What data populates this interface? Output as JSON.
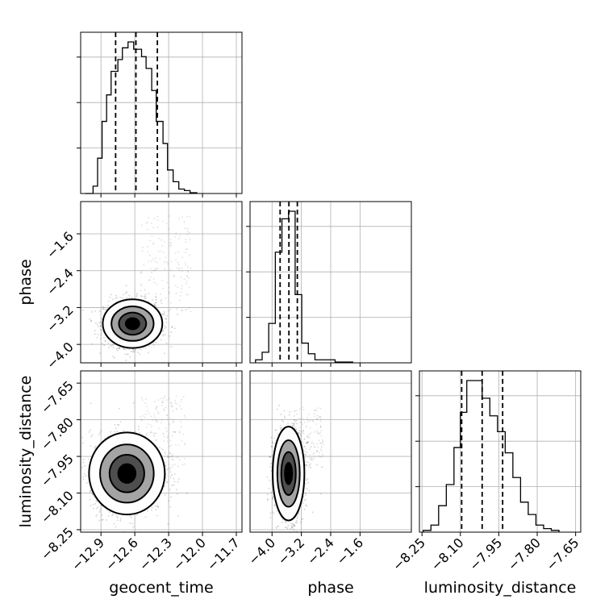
{
  "chart_data": {
    "type": "corner",
    "parameters": [
      "geocent_time",
      "phase",
      "luminosity_distance"
    ],
    "grid": true,
    "colors": {
      "line": "#000000",
      "grid": "#b0b0b0",
      "points": "#000000"
    },
    "panels": {
      "geocent_time": {
        "type": "histogram",
        "xlim": [
          -13.08,
          -11.65
        ],
        "quantiles": [
          -12.77,
          -12.59,
          -12.4
        ],
        "bins": [
          {
            "x0": -13.04,
            "x1": -12.97,
            "v": 0.0
          },
          {
            "x0": -12.97,
            "x1": -12.93,
            "v": 0.05
          },
          {
            "x0": -12.93,
            "x1": -12.89,
            "v": 0.24
          },
          {
            "x0": -12.89,
            "x1": -12.85,
            "v": 0.49
          },
          {
            "x0": -12.85,
            "x1": -12.81,
            "v": 0.67
          },
          {
            "x0": -12.81,
            "x1": -12.75,
            "v": 0.83
          },
          {
            "x0": -12.75,
            "x1": -12.71,
            "v": 0.91
          },
          {
            "x0": -12.71,
            "x1": -12.66,
            "v": 0.99
          },
          {
            "x0": -12.66,
            "x1": -12.61,
            "v": 1.03
          },
          {
            "x0": -12.61,
            "x1": -12.54,
            "v": 0.98
          },
          {
            "x0": -12.54,
            "x1": -12.5,
            "v": 0.93
          },
          {
            "x0": -12.5,
            "x1": -12.45,
            "v": 0.85
          },
          {
            "x0": -12.45,
            "x1": -12.41,
            "v": 0.7
          },
          {
            "x0": -12.41,
            "x1": -12.35,
            "v": 0.49
          },
          {
            "x0": -12.35,
            "x1": -12.31,
            "v": 0.34
          },
          {
            "x0": -12.31,
            "x1": -12.26,
            "v": 0.16
          },
          {
            "x0": -12.26,
            "x1": -12.21,
            "v": 0.08
          },
          {
            "x0": -12.21,
            "x1": -12.16,
            "v": 0.03
          },
          {
            "x0": -12.16,
            "x1": -12.11,
            "v": 0.02
          },
          {
            "x0": -12.11,
            "x1": -12.05,
            "v": 0.005
          }
        ]
      },
      "phase": {
        "type": "histogram",
        "xlim": [
          -4.6,
          -0.2
        ],
        "quantiles": [
          -3.78,
          -3.54,
          -3.31
        ],
        "bins": [
          {
            "x0": -4.45,
            "x1": -4.27,
            "v": 0.02
          },
          {
            "x0": -4.27,
            "x1": -4.09,
            "v": 0.07
          },
          {
            "x0": -4.09,
            "x1": -3.91,
            "v": 0.26
          },
          {
            "x0": -3.91,
            "x1": -3.73,
            "v": 0.73
          },
          {
            "x0": -3.73,
            "x1": -3.55,
            "v": 0.95
          },
          {
            "x0": -3.55,
            "x1": -3.37,
            "v": 1.0
          },
          {
            "x0": -3.37,
            "x1": -3.19,
            "v": 0.45
          },
          {
            "x0": -3.19,
            "x1": -3.01,
            "v": 0.13
          },
          {
            "x0": -3.01,
            "x1": -2.83,
            "v": 0.06
          },
          {
            "x0": -2.83,
            "x1": -2.28,
            "v": 0.02
          },
          {
            "x0": -2.28,
            "x1": -1.8,
            "v": 0.005
          }
        ]
      },
      "luminosity_distance": {
        "type": "histogram",
        "xlim": [
          -8.26,
          -7.63
        ],
        "quantiles": [
          -8.095,
          -8.015,
          -7.935
        ],
        "bins": [
          {
            "x0": -8.245,
            "x1": -8.215,
            "v": 0.01
          },
          {
            "x0": -8.215,
            "x1": -8.185,
            "v": 0.04
          },
          {
            "x0": -8.185,
            "x1": -8.155,
            "v": 0.15
          },
          {
            "x0": -8.155,
            "x1": -8.125,
            "v": 0.27
          },
          {
            "x0": -8.125,
            "x1": -8.1,
            "v": 0.48
          },
          {
            "x0": -8.1,
            "x1": -8.075,
            "v": 0.68
          },
          {
            "x0": -8.075,
            "x1": -8.045,
            "v": 0.86
          },
          {
            "x0": -8.045,
            "x1": -8.015,
            "v": 0.86
          },
          {
            "x0": -8.015,
            "x1": -7.985,
            "v": 0.76
          },
          {
            "x0": -7.985,
            "x1": -7.955,
            "v": 0.66
          },
          {
            "x0": -7.955,
            "x1": -7.925,
            "v": 0.57
          },
          {
            "x0": -7.925,
            "x1": -7.895,
            "v": 0.45
          },
          {
            "x0": -7.895,
            "x1": -7.865,
            "v": 0.31
          },
          {
            "x0": -7.865,
            "x1": -7.835,
            "v": 0.17
          },
          {
            "x0": -7.835,
            "x1": -7.805,
            "v": 0.1
          },
          {
            "x0": -7.805,
            "x1": -7.775,
            "v": 0.04
          },
          {
            "x0": -7.775,
            "x1": -7.745,
            "v": 0.02
          },
          {
            "x0": -7.745,
            "x1": -7.715,
            "v": 0.01
          }
        ]
      },
      "phase_vs_geocent_time": {
        "type": "density",
        "x": "geocent_time",
        "y": "phase",
        "xlim": [
          -13.08,
          -11.65
        ],
        "ylim": [
          -4.4,
          -0.9
        ],
        "center": [
          -12.62,
          -3.55
        ],
        "spread": [
          0.11,
          0.22
        ],
        "tail": {
          "x_range": [
            -12.55,
            -12.1
          ],
          "y_range": [
            -3.4,
            -1.2
          ]
        }
      },
      "luminosity_distance_vs_geocent_time": {
        "type": "density",
        "x": "geocent_time",
        "y": "luminosity_distance",
        "xlim": [
          -13.08,
          -11.65
        ],
        "ylim": [
          -8.26,
          -7.6
        ],
        "center": [
          -12.67,
          -8.02
        ],
        "spread": [
          0.14,
          0.07
        ],
        "tail": {
          "x_range": [
            -12.55,
            -12.15
          ],
          "y_range": [
            -8.0,
            -7.7
          ]
        }
      },
      "luminosity_distance_vs_phase": {
        "type": "density",
        "x": "phase",
        "y": "luminosity_distance",
        "xlim": [
          -4.6,
          -0.2
        ],
        "ylim": [
          -8.26,
          -7.6
        ],
        "center": [
          -3.55,
          -8.02
        ],
        "spread": [
          0.18,
          0.08
        ],
        "tail": {
          "x_range": [
            -3.4,
            -2.6
          ],
          "y_range": [
            -8.0,
            -7.75
          ]
        }
      }
    },
    "ticks": {
      "geocent_time": [
        "−12.9",
        "−12.6",
        "−12.3",
        "−12.0",
        "−11.7"
      ],
      "geocent_time_values": [
        -12.9,
        -12.6,
        -12.3,
        -12.0,
        -11.7
      ],
      "phase": [
        "−4.0",
        "−3.2",
        "−2.4",
        "−1.6"
      ],
      "phase_values": [
        -4.0,
        -3.2,
        -2.4,
        -1.6
      ],
      "luminosity_distance": [
        "−8.25",
        "−8.10",
        "−7.95",
        "−7.80",
        "−7.65"
      ],
      "luminosity_distance_values": [
        -8.25,
        -8.1,
        -7.95,
        -7.8,
        -7.65
      ]
    },
    "axis_titles": {
      "x": [
        "geocent_time",
        "phase",
        "luminosity_distance"
      ],
      "y": [
        "phase",
        "luminosity_distance"
      ]
    }
  }
}
